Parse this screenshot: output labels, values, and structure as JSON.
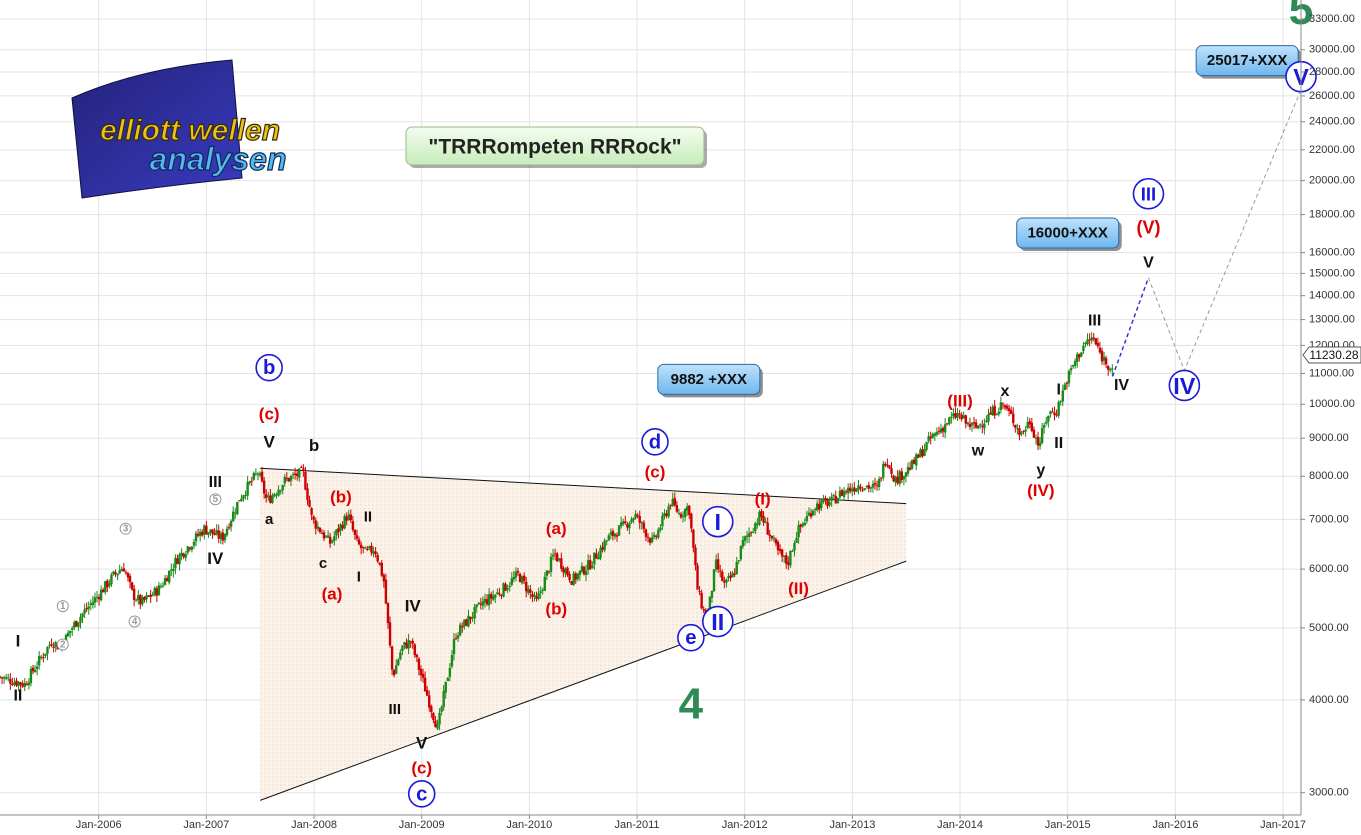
{
  "chart_data": {
    "type": "candlestick",
    "title": "\"TRRRompeten RRRock\"",
    "y_scale": "log",
    "ylim": [
      2800,
      35000
    ],
    "xlim": [
      "2005-02",
      "2017-03"
    ],
    "grid": true,
    "y_ticks": [
      3000,
      4000,
      5000,
      6000,
      7000,
      8000,
      9000,
      10000,
      11000,
      12000,
      13000,
      14000,
      15000,
      16000,
      18000,
      20000,
      22000,
      24000,
      26000,
      28000,
      30000,
      33000
    ],
    "y_tick_labels": [
      "3000.00",
      "4000.00",
      "5000.00",
      "6000.00",
      "7000.00",
      "8000.00",
      "9000.00",
      "10000.00",
      "11000.00",
      "12000.00",
      "13000.00",
      "14000.00",
      "15000.00",
      "16000.00",
      "18000.00",
      "20000.00",
      "22000.00",
      "24000.00",
      "26000.00",
      "28000.00",
      "30000.00",
      "33000.00"
    ],
    "x_ticks": [
      "2006-01",
      "2007-01",
      "2008-01",
      "2009-01",
      "2010-01",
      "2011-01",
      "2012-01",
      "2013-01",
      "2014-01",
      "2015-01",
      "2016-01",
      "2017-01"
    ],
    "x_tick_labels": [
      "Jan-2006",
      "Jan-2007",
      "Jan-2008",
      "Jan-2009",
      "Jan-2010",
      "Jan-2011",
      "Jan-2012",
      "Jan-2013",
      "Jan-2014",
      "Jan-2015",
      "Jan-2016",
      "Jan-2017"
    ],
    "last_price": "11230.28",
    "bull_color": "#1a8a1a",
    "bear_color": "#cc0000",
    "price_path": [
      [
        "2005-02",
        4300
      ],
      [
        "2005-05",
        4200
      ],
      [
        "2005-06",
        4400
      ],
      [
        "2005-08",
        4800
      ],
      [
        "2005-09",
        4700
      ],
      [
        "2005-10",
        4950
      ],
      [
        "2005-11",
        5150
      ],
      [
        "2006-01",
        5500
      ],
      [
        "2006-03",
        5900
      ],
      [
        "2006-04",
        6050
      ],
      [
        "2006-05",
        5550
      ],
      [
        "2006-06",
        5400
      ],
      [
        "2006-08",
        5650
      ],
      [
        "2006-10",
        6200
      ],
      [
        "2006-12",
        6600
      ],
      [
        "2007-01",
        6800
      ],
      [
        "2007-03",
        6600
      ],
      [
        "2007-05",
        7500
      ],
      [
        "2007-07",
        8100
      ],
      [
        "2007-08",
        7400
      ],
      [
        "2007-10",
        7900
      ],
      [
        "2007-12",
        8100
      ],
      [
        "2008-01",
        7000
      ],
      [
        "2008-03",
        6500
      ],
      [
        "2008-05",
        7100
      ],
      [
        "2008-06",
        6500
      ],
      [
        "2008-07",
        6300
      ],
      [
        "2008-08",
        6400
      ],
      [
        "2008-09",
        5800
      ],
      [
        "2008-10",
        4300
      ],
      [
        "2008-11",
        4700
      ],
      [
        "2008-12",
        4800
      ],
      [
        "2009-02",
        4000
      ],
      [
        "2009-03",
        3660
      ],
      [
        "2009-05",
        4900
      ],
      [
        "2009-08",
        5400
      ],
      [
        "2009-10",
        5600
      ],
      [
        "2009-12",
        5900
      ],
      [
        "2010-02",
        5400
      ],
      [
        "2010-04",
        6300
      ],
      [
        "2010-06",
        5800
      ],
      [
        "2010-08",
        6100
      ],
      [
        "2010-10",
        6600
      ],
      [
        "2010-12",
        6900
      ],
      [
        "2011-01",
        7100
      ],
      [
        "2011-03",
        6500
      ],
      [
        "2011-05",
        7400
      ],
      [
        "2011-06",
        7100
      ],
      [
        "2011-07",
        7300
      ],
      [
        "2011-08",
        5600
      ],
      [
        "2011-09",
        5100
      ],
      [
        "2011-10",
        6100
      ],
      [
        "2011-11",
        5700
      ],
      [
        "2011-12",
        5900
      ],
      [
        "2012-01",
        6500
      ],
      [
        "2012-03",
        7100
      ],
      [
        "2012-05",
        6300
      ],
      [
        "2012-06",
        6100
      ],
      [
        "2012-07",
        6700
      ],
      [
        "2012-09",
        7300
      ],
      [
        "2012-11",
        7400
      ],
      [
        "2012-12",
        7600
      ],
      [
        "2013-02",
        7800
      ],
      [
        "2013-04",
        7700
      ],
      [
        "2013-05",
        8500
      ],
      [
        "2013-06",
        7900
      ],
      [
        "2013-08",
        8300
      ],
      [
        "2013-10",
        9000
      ],
      [
        "2013-12",
        9500
      ],
      [
        "2014-01",
        9700
      ],
      [
        "2014-02",
        9400
      ],
      [
        "2014-03",
        9300
      ],
      [
        "2014-05",
        9800
      ],
      [
        "2014-06",
        10000
      ],
      [
        "2014-07",
        9600
      ],
      [
        "2014-08",
        9100
      ],
      [
        "2014-09",
        9500
      ],
      [
        "2014-10",
        8800
      ],
      [
        "2014-11",
        9700
      ],
      [
        "2014-12",
        9800
      ],
      [
        "2015-01",
        10700
      ],
      [
        "2015-02",
        11400
      ],
      [
        "2015-03",
        12000
      ],
      [
        "2015-04",
        12300
      ],
      [
        "2015-05",
        11600
      ],
      [
        "2015-06",
        11230
      ]
    ],
    "annotations": [
      {
        "text": "b",
        "x": "2007-08",
        "y": 11200,
        "color": "#1a1adb",
        "circle": true,
        "size": 26
      },
      {
        "text": "(c)",
        "x": "2007-08",
        "y": 9700,
        "color": "#e00000",
        "size": 17
      },
      {
        "text": "V",
        "x": "2007-08",
        "y": 8900,
        "color": "#111111",
        "size": 17
      },
      {
        "text": "b",
        "x": "2008-01",
        "y": 8800,
        "color": "#111111",
        "size": 17
      },
      {
        "text": "III",
        "x": "2007-02",
        "y": 7850,
        "color": "#111111",
        "size": 16
      },
      {
        "text": "5",
        "x": "2007-02",
        "y": 7450,
        "color": "#999999",
        "circle": true,
        "size": 11
      },
      {
        "text": "IV",
        "x": "2007-02",
        "y": 6200,
        "color": "#111111",
        "size": 17
      },
      {
        "text": "a",
        "x": "2007-08",
        "y": 7000,
        "color": "#111111",
        "size": 15
      },
      {
        "text": "(b)",
        "x": "2008-04",
        "y": 7500,
        "color": "#e00000",
        "size": 17
      },
      {
        "text": "II",
        "x": "2008-07",
        "y": 7050,
        "color": "#111111",
        "size": 15
      },
      {
        "text": "c",
        "x": "2008-02",
        "y": 6100,
        "color": "#111111",
        "size": 15
      },
      {
        "text": "I",
        "x": "2008-06",
        "y": 5850,
        "color": "#111111",
        "size": 15
      },
      {
        "text": "(a)",
        "x": "2008-03",
        "y": 5550,
        "color": "#e00000",
        "size": 17
      },
      {
        "text": "IV",
        "x": "2008-12",
        "y": 5350,
        "color": "#111111",
        "size": 17
      },
      {
        "text": "III",
        "x": "2008-10",
        "y": 3880,
        "color": "#111111",
        "size": 15
      },
      {
        "text": "V",
        "x": "2009-01",
        "y": 3500,
        "color": "#111111",
        "size": 17
      },
      {
        "text": "(c)",
        "x": "2009-01",
        "y": 3240,
        "color": "#e00000",
        "size": 17
      },
      {
        "text": "c",
        "x": "2009-01",
        "y": 2990,
        "color": "#1a1adb",
        "circle": true,
        "size": 26
      },
      {
        "text": "3",
        "x": "2006-04",
        "y": 6800,
        "color": "#999999",
        "circle": true,
        "size": 11
      },
      {
        "text": "4",
        "x": "2006-05",
        "y": 5100,
        "color": "#999999",
        "circle": true,
        "size": 11
      },
      {
        "text": "1",
        "x": "2005-09",
        "y": 5350,
        "color": "#999999",
        "circle": true,
        "size": 11
      },
      {
        "text": "2",
        "x": "2005-09",
        "y": 4750,
        "color": "#999999",
        "circle": true,
        "size": 11
      },
      {
        "text": "I",
        "x": "2005-04",
        "y": 4800,
        "color": "#111111",
        "size": 17
      },
      {
        "text": "II",
        "x": "2005-04",
        "y": 4050,
        "color": "#111111",
        "size": 16
      },
      {
        "text": "(a)",
        "x": "2010-04",
        "y": 6800,
        "color": "#e00000",
        "size": 17
      },
      {
        "text": "(b)",
        "x": "2010-04",
        "y": 5300,
        "color": "#e00000",
        "size": 17
      },
      {
        "text": "d",
        "x": "2011-03",
        "y": 8900,
        "color": "#1a1adb",
        "circle": true,
        "size": 26
      },
      {
        "text": "(c)",
        "x": "2011-03",
        "y": 8100,
        "color": "#e00000",
        "size": 17
      },
      {
        "text": "I",
        "x": "2011-10",
        "y": 6950,
        "color": "#1a1adb",
        "circle": true,
        "size": 30
      },
      {
        "text": "II",
        "x": "2011-10",
        "y": 5100,
        "color": "#1a1adb",
        "circle": true,
        "size": 30
      },
      {
        "text": "e",
        "x": "2011-07",
        "y": 4850,
        "color": "#1a1adb",
        "circle": true,
        "size": 26
      },
      {
        "text": "4",
        "x": "2011-07",
        "y": 3950,
        "color": "#2e8b57",
        "size": 44
      },
      {
        "text": "(I)",
        "x": "2012-03",
        "y": 7450,
        "color": "#e00000",
        "size": 17
      },
      {
        "text": "(II)",
        "x": "2012-07",
        "y": 5650,
        "color": "#e00000",
        "size": 17
      },
      {
        "text": "(III)",
        "x": "2014-01",
        "y": 10100,
        "color": "#e00000",
        "size": 17
      },
      {
        "text": "x",
        "x": "2014-06",
        "y": 10400,
        "color": "#111111",
        "size": 16
      },
      {
        "text": "w",
        "x": "2014-03",
        "y": 8650,
        "color": "#111111",
        "size": 16
      },
      {
        "text": "I",
        "x": "2014-12",
        "y": 10450,
        "color": "#111111",
        "size": 16
      },
      {
        "text": "II",
        "x": "2014-12",
        "y": 8850,
        "color": "#111111",
        "size": 16
      },
      {
        "text": "y",
        "x": "2014-10",
        "y": 8150,
        "color": "#111111",
        "size": 16
      },
      {
        "text": "(IV)",
        "x": "2014-10",
        "y": 7650,
        "color": "#e00000",
        "size": 17
      },
      {
        "text": "III",
        "x": "2015-04",
        "y": 12950,
        "color": "#111111",
        "size": 16
      },
      {
        "text": "IV",
        "x": "2015-07",
        "y": 10600,
        "color": "#111111",
        "size": 16
      },
      {
        "text": "III",
        "x": "2015-10",
        "y": 19200,
        "color": "#1a1adb",
        "circle": true,
        "size": 30
      },
      {
        "text": "(V)",
        "x": "2015-10",
        "y": 17300,
        "color": "#e00000",
        "size": 18
      },
      {
        "text": "V",
        "x": "2015-10",
        "y": 15500,
        "color": "#111111",
        "size": 16
      },
      {
        "text": "IV",
        "x": "2016-02",
        "y": 10600,
        "color": "#1a1adb",
        "circle": true,
        "size": 30
      },
      {
        "text": "V",
        "x": "2017-03",
        "y": 27600,
        "color": "#1a1adb",
        "circle": true,
        "size": 30
      },
      {
        "text": "5",
        "x": "2017-03",
        "y": 34000,
        "color": "#2e8b57",
        "size": 44
      }
    ],
    "boxes": [
      {
        "text": "25017+XXX",
        "x": "2016-09",
        "y": 29000
      },
      {
        "text": "16000+XXX",
        "x": "2015-01",
        "y": 17000
      },
      {
        "text": "9882 +XXX",
        "x": "2011-09",
        "y": 10800
      }
    ],
    "triangle": [
      [
        "2007-07",
        8200
      ],
      [
        "2013-07",
        7350
      ],
      [
        "2013-07",
        6150
      ],
      [
        "2007-07",
        2930
      ]
    ],
    "forecast_blue": [
      [
        "2015-06",
        10900
      ],
      [
        "2015-10",
        14800
      ]
    ],
    "forecast_gray": [
      [
        "2015-10",
        14800
      ],
      [
        "2016-02",
        11100
      ],
      [
        "2017-03",
        26500
      ]
    ],
    "logo_text": [
      "elliott wellen",
      "analysen"
    ]
  }
}
